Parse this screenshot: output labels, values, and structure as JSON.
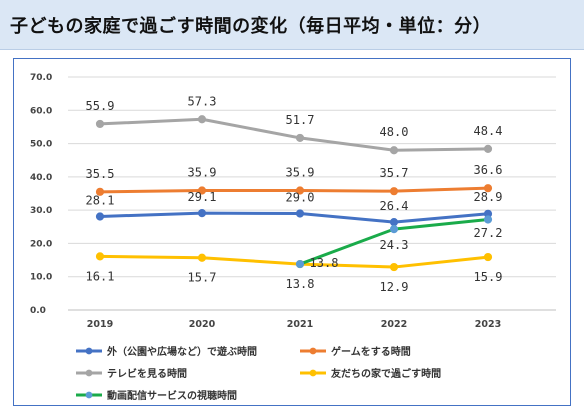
{
  "header": {
    "title": "子どもの家庭で過ごす時間の変化（毎日平均・単位：分）"
  },
  "chart_data": {
    "type": "line",
    "title": "子どもの家庭で過ごす時間の変化（毎日平均・単位：分）",
    "categories": [
      "2019",
      "2020",
      "2021",
      "2022",
      "2023"
    ],
    "y_ticks": [
      "0.0",
      "10.0",
      "20.0",
      "30.0",
      "40.0",
      "50.0",
      "60.0",
      "70.0"
    ],
    "ylim": [
      0,
      70
    ],
    "grid": "horizontal",
    "legend_position": "bottom",
    "series": [
      {
        "name": "外（公園や広場など）で遊ぶ時間",
        "color": "#4472c4",
        "values": [
          28.1,
          29.1,
          29.0,
          26.4,
          28.9
        ],
        "labels": [
          "28.1",
          "29.1",
          "29.0",
          "26.4",
          "28.9"
        ]
      },
      {
        "name": "ゲームをする時間",
        "color": "#ed7d31",
        "values": [
          35.5,
          35.9,
          35.9,
          35.7,
          36.6
        ],
        "labels": [
          "35.5",
          "35.9",
          "35.9",
          "35.7",
          "36.6"
        ]
      },
      {
        "name": "テレビを見る時間",
        "color": "#a5a5a5",
        "values": [
          55.9,
          57.3,
          51.7,
          48.0,
          48.4
        ],
        "labels": [
          "55.9",
          "57.3",
          "51.7",
          "48.0",
          "48.4"
        ]
      },
      {
        "name": "友だちの家で過ごす時間",
        "color": "#ffc000",
        "values": [
          16.1,
          15.7,
          13.8,
          12.9,
          15.9
        ],
        "labels": [
          "16.1",
          "15.7",
          "13.8",
          "12.9",
          "15.9"
        ]
      },
      {
        "name": "動画配信サービスの視聴時間",
        "color": "#1aab4a",
        "marker_color": "#5b9bd5",
        "values": [
          null,
          null,
          13.8,
          24.3,
          27.2
        ],
        "labels": [
          null,
          null,
          "13.8",
          "24.3",
          "27.2"
        ]
      }
    ]
  }
}
